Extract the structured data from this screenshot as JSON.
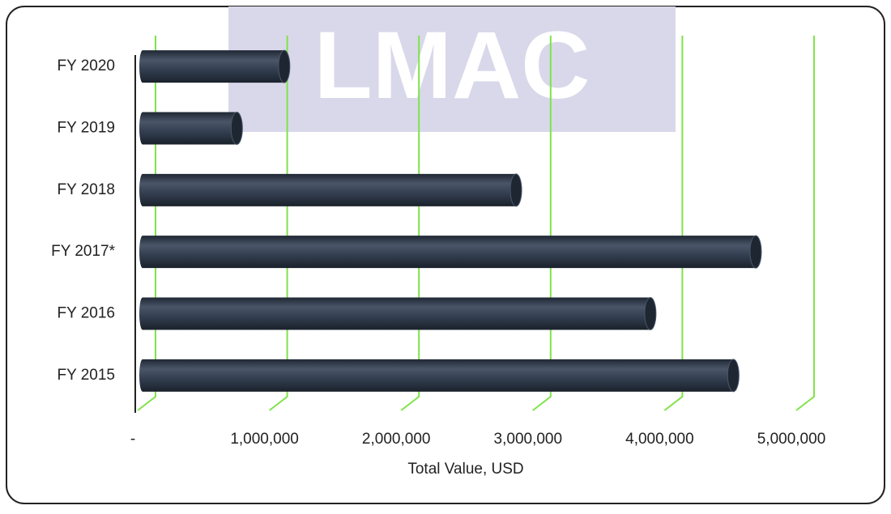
{
  "chart_data": {
    "type": "bar",
    "watermark": "LMAC",
    "xlabel": "Total Value, USD",
    "categories": [
      "FY 2015",
      "FY 2016",
      "FY 2017*",
      "FY 2018",
      "FY 2019",
      "FY 2020"
    ],
    "values": [
      4510000,
      3880000,
      4680000,
      2860000,
      740000,
      1100000
    ],
    "color": "#333f50",
    "grid_color": "#7fe34a",
    "grid": true,
    "xlim": [
      0,
      5000000
    ],
    "xticks": [
      {
        "value": 0,
        "label": "-"
      },
      {
        "value": 1000000,
        "label": "1,000,000"
      },
      {
        "value": 2000000,
        "label": "2,000,000"
      },
      {
        "value": 3000000,
        "label": "3,000,000"
      },
      {
        "value": 4000000,
        "label": "4,000,000"
      },
      {
        "value": 5000000,
        "label": "5,000,000"
      }
    ]
  }
}
